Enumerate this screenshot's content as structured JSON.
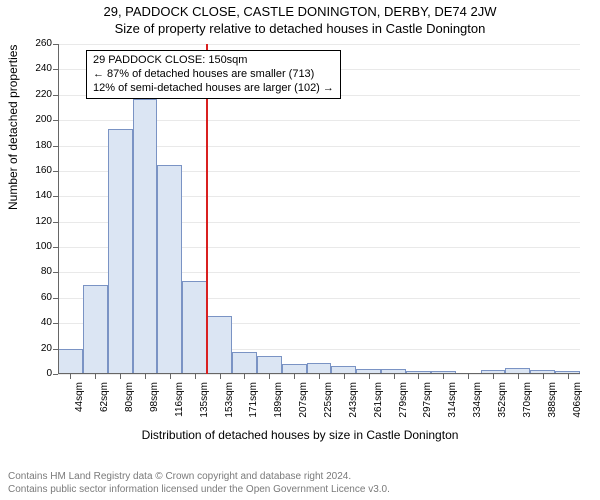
{
  "titles": {
    "main": "29, PADDOCK CLOSE, CASTLE DONINGTON, DERBY, DE74 2JW",
    "sub": "Size of property relative to detached houses in Castle Donington"
  },
  "axes": {
    "ylabel": "Number of detached properties",
    "xlabel": "Distribution of detached houses by size in Castle Donington",
    "ylim": [
      0,
      260
    ],
    "ytick_step": 20,
    "yticks": [
      0,
      20,
      40,
      60,
      80,
      100,
      120,
      140,
      160,
      180,
      200,
      220,
      240,
      260
    ],
    "xticks": [
      "44sqm",
      "62sqm",
      "80sqm",
      "98sqm",
      "116sqm",
      "135sqm",
      "153sqm",
      "171sqm",
      "189sqm",
      "207sqm",
      "225sqm",
      "243sqm",
      "261sqm",
      "279sqm",
      "297sqm",
      "314sqm",
      "334sqm",
      "352sqm",
      "370sqm",
      "388sqm",
      "406sqm"
    ],
    "label_fontsize": 12,
    "tick_fontsize": 10
  },
  "chart": {
    "type": "histogram",
    "background_color": "#ffffff",
    "grid_color": "#e9e9e9",
    "axis_color": "#666666",
    "bar_fill": "#dbe5f3",
    "bar_stroke": "#7a93c4",
    "bar_width_ratio": 1.0,
    "values": [
      20,
      70,
      193,
      217,
      165,
      73,
      46,
      17,
      14,
      8,
      9,
      6,
      4,
      4,
      2,
      2,
      0,
      3,
      5,
      3,
      2
    ],
    "reference_line": {
      "index_after": 6,
      "color": "#d92020",
      "width": 2
    }
  },
  "info_box": {
    "line1": "29 PADDOCK CLOSE: 150sqm",
    "line2": "← 87% of detached houses are smaller (713)",
    "line3": "12% of semi-detached houses are larger (102) →",
    "border_color": "#000000",
    "fontsize": 11
  },
  "footer": {
    "line1": "Contains HM Land Registry data © Crown copyright and database right 2024.",
    "line2": "Contains public sector information licensed under the Open Government Licence v3.0.",
    "color": "#7a7a7a",
    "fontsize": 10
  }
}
